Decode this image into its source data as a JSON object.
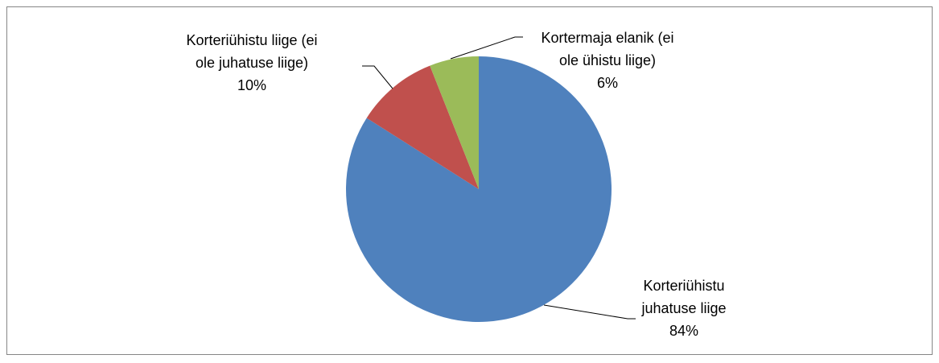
{
  "chart_data": {
    "type": "pie",
    "categories": [
      "Korteriühistu juhatuse liige",
      "Korteriühistu liige (ei ole juhatuse liige)",
      "Kortermaja elanik (ei ole ühistu liige)"
    ],
    "values": [
      84,
      10,
      6
    ],
    "value_labels": [
      "84%",
      "10%",
      "6%"
    ],
    "colors": [
      "#4f81bd",
      "#c0504d",
      "#9bbb59"
    ]
  }
}
